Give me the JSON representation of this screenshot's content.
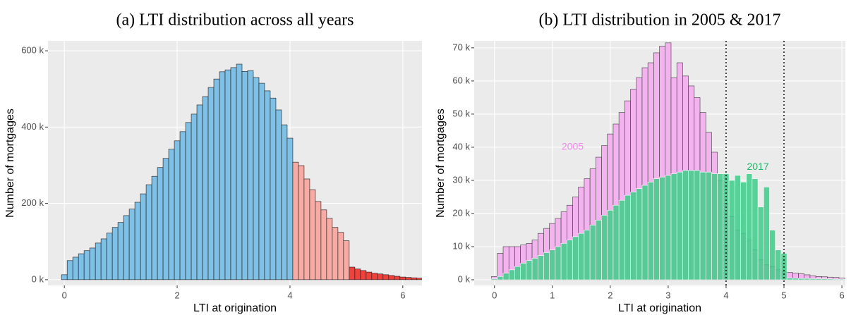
{
  "chart_data": [
    {
      "type": "histogram",
      "title": "(a) LTI distribution across all years",
      "x_label": "LTI at origination",
      "y_label": "Number of mortgages",
      "xlim": [
        -0.29,
        6.34
      ],
      "ylim": [
        -15000,
        626000
      ],
      "xticks": [
        0,
        2,
        4,
        6
      ],
      "yticks": [
        {
          "value": 0,
          "label": "0 k"
        },
        {
          "value": 200000,
          "label": "200 k"
        },
        {
          "value": 400000,
          "label": "400 k"
        },
        {
          "value": 600000,
          "label": "600 k"
        }
      ],
      "grid": true,
      "series": [
        {
          "color": "#7fc0e6",
          "edgecolor": "#1a1a1a",
          "bins": [
            -0.05,
            0.05,
            0.15,
            0.25,
            0.35,
            0.45,
            0.55,
            0.65,
            0.75,
            0.85,
            0.95,
            1.05,
            1.15,
            1.25,
            1.35,
            1.45,
            1.55,
            1.65,
            1.75,
            1.85,
            1.95,
            2.05,
            2.15,
            2.25,
            2.35,
            2.45,
            2.55,
            2.65,
            2.75,
            2.85,
            2.95,
            3.05,
            3.15,
            3.25,
            3.35,
            3.45,
            3.55,
            3.65,
            3.75,
            3.85,
            3.95,
            4.05
          ],
          "values": [
            13000,
            50000,
            59000,
            68000,
            76000,
            83000,
            96000,
            107000,
            122000,
            137000,
            150000,
            168000,
            185000,
            203000,
            225000,
            249000,
            271000,
            294000,
            318000,
            342000,
            364000,
            388000,
            412000,
            434000,
            458000,
            480000,
            504000,
            526000,
            545000,
            550000,
            556000,
            565000,
            546000,
            548000,
            530000,
            515000,
            495000,
            476000,
            445000,
            406000,
            371000
          ]
        },
        {
          "color": "#f8aaa3",
          "edgecolor": "#1a1a1a",
          "bins": [
            4.05,
            4.15,
            4.25,
            4.35,
            4.45,
            4.55,
            4.65,
            4.75,
            4.85,
            4.95,
            5.05
          ],
          "values": [
            308000,
            299000,
            264000,
            236000,
            205000,
            183000,
            161000,
            137000,
            124000,
            102000
          ]
        },
        {
          "color": "#f2403a",
          "edgecolor": "#1a1a1a",
          "bins": [
            5.05,
            5.15,
            5.25,
            5.35,
            5.45,
            5.55,
            5.65,
            5.75,
            5.85,
            5.95,
            6.05,
            6.15,
            6.25,
            6.35
          ],
          "values": [
            33000,
            28000,
            24000,
            20000,
            17000,
            15000,
            13000,
            11000,
            9000,
            7000,
            6000,
            5000,
            4000
          ]
        }
      ]
    },
    {
      "type": "histogram",
      "title": "(b) LTI distribution in 2005 & 2017",
      "x_label": "LTI at origination",
      "y_label": "Number of mortgages",
      "xlim": [
        -0.35,
        6.06
      ],
      "ylim": [
        -1700,
        72100
      ],
      "xticks": [
        0,
        1,
        2,
        3,
        4,
        5,
        6
      ],
      "yticks": [
        {
          "value": 0,
          "label": "0 k"
        },
        {
          "value": 10000,
          "label": "10 k"
        },
        {
          "value": 20000,
          "label": "20 k"
        },
        {
          "value": 30000,
          "label": "30 k"
        },
        {
          "value": 40000,
          "label": "40 k"
        },
        {
          "value": 50000,
          "label": "50 k"
        },
        {
          "value": 60000,
          "label": "60 k"
        },
        {
          "value": 70000,
          "label": "70 k"
        }
      ],
      "grid": true,
      "vlines": [
        4,
        5
      ],
      "bins": [
        -0.05,
        0.05,
        0.15,
        0.25,
        0.35,
        0.45,
        0.55,
        0.65,
        0.75,
        0.85,
        0.95,
        1.05,
        1.15,
        1.25,
        1.35,
        1.45,
        1.55,
        1.65,
        1.75,
        1.85,
        1.95,
        2.05,
        2.15,
        2.25,
        2.35,
        2.45,
        2.55,
        2.65,
        2.75,
        2.85,
        2.95,
        3.05,
        3.15,
        3.25,
        3.35,
        3.45,
        3.55,
        3.65,
        3.75,
        3.85,
        3.95,
        4.05,
        4.15,
        4.25,
        4.35,
        4.45,
        4.55,
        4.65,
        4.75,
        4.85,
        4.95,
        5.05,
        5.15,
        5.25,
        5.35,
        5.45,
        5.55,
        5.65,
        5.75,
        5.85,
        5.95,
        6.05
      ],
      "series": [
        {
          "color": "#f3b3ef",
          "edgecolor": "#3a3a3a",
          "opacity": 1,
          "values": [
            1000,
            8000,
            10000,
            10000,
            10000,
            10500,
            11000,
            12000,
            14000,
            15500,
            17000,
            18500,
            20500,
            22500,
            25000,
            28000,
            30500,
            33500,
            37000,
            40500,
            44000,
            47000,
            50500,
            54000,
            57500,
            61000,
            64000,
            65500,
            68500,
            70500,
            71500,
            61000,
            65500,
            61500,
            58500,
            55000,
            50500,
            44500,
            38500,
            30000,
            23000,
            19000,
            15000,
            14000,
            12000,
            9000,
            6000,
            4500,
            4000,
            3000,
            2500,
            2200,
            2000,
            1800,
            1500,
            1200,
            1000,
            900,
            800,
            700,
            500
          ]
        },
        {
          "color": "#3dcc88",
          "edgecolor": "#ffffff",
          "opacity": 0.85,
          "values": [
            300,
            1000,
            2000,
            3000,
            4000,
            5000,
            5800,
            6500,
            7300,
            8200,
            9000,
            10000,
            11000,
            12000,
            13000,
            14000,
            15000,
            16500,
            18000,
            19500,
            21000,
            22500,
            24000,
            25500,
            26500,
            27500,
            28500,
            29500,
            30500,
            31000,
            31500,
            32000,
            32500,
            33000,
            33000,
            33000,
            32500,
            32500,
            32000,
            32000,
            32000,
            30000,
            31500,
            29500,
            32000,
            30500,
            22000,
            28000,
            15000,
            9000,
            8000,
            500,
            450,
            400,
            400,
            350,
            300,
            300,
            250,
            200,
            200
          ]
        }
      ],
      "annotations": [
        {
          "text": "2005",
          "x": 1.35,
          "y": 40000,
          "color": "#f08ae8"
        },
        {
          "text": "2017",
          "x": 4.55,
          "y": 34000,
          "color": "#1fb86a"
        }
      ]
    }
  ]
}
